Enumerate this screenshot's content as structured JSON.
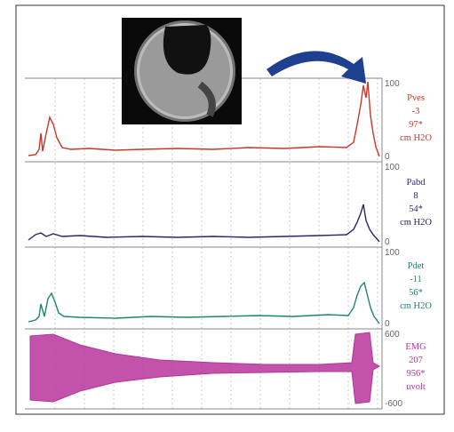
{
  "channels": [
    {
      "name": "Pves",
      "value": "-3",
      "max": "97*",
      "unit": "cm H2O",
      "scale_top": "100",
      "scale_bottom": "0"
    },
    {
      "name": "Pabd",
      "value": "8",
      "max": "54*",
      "unit": "cm H2O",
      "scale_top": "100",
      "scale_bottom": "0"
    },
    {
      "name": "Pdet",
      "value": "-11",
      "max": "56*",
      "unit": "cm H2O",
      "scale_top": "100",
      "scale_bottom": "0"
    },
    {
      "name": "EMG",
      "value": "207",
      "max": "956*",
      "unit": "uvolt",
      "scale_top": "600",
      "scale_bottom": "-600"
    }
  ]
}
